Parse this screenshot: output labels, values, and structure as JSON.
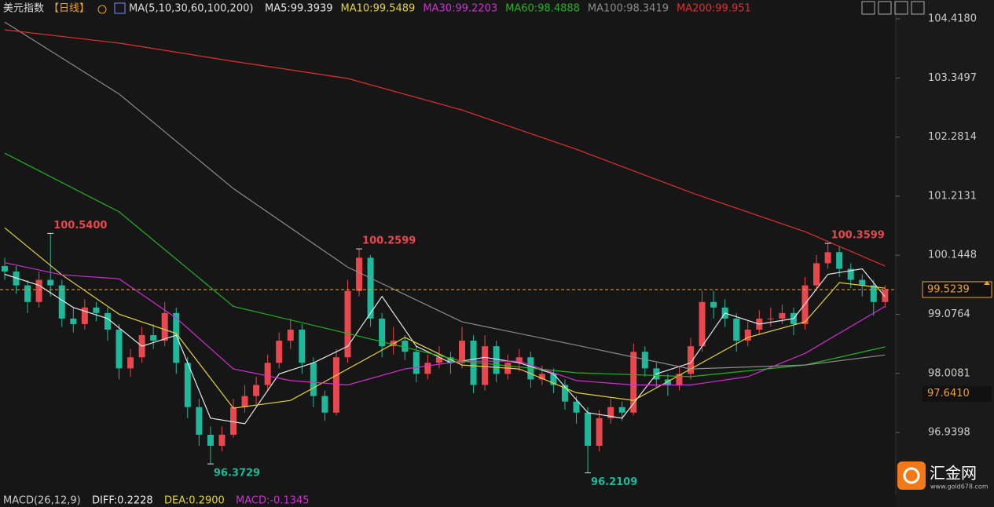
{
  "chart_data": {
    "type": "candlestick",
    "title": "美元指数",
    "period": "【日线】",
    "ma_params": "MA(5,10,30,60,100,200)",
    "up_color": "#e8474d",
    "down_color": "#1fb89a",
    "ylim": [
      95.892,
      104.7585
    ],
    "yticks": [
      {
        "value": 104.418,
        "label": "104.4180"
      },
      {
        "value": 103.3497,
        "label": "103.3497"
      },
      {
        "value": 102.2814,
        "label": "102.2814"
      },
      {
        "value": 101.2131,
        "label": "101.2131"
      },
      {
        "value": 100.1448,
        "label": "100.1448"
      },
      {
        "value": 99.0764,
        "label": "99.0764"
      },
      {
        "value": 98.0081,
        "label": "98.0081"
      },
      {
        "value": 96.9398,
        "label": "96.9398"
      }
    ],
    "ohlc": [
      [
        99.95,
        100.1,
        99.7,
        99.85
      ],
      [
        99.85,
        99.95,
        99.45,
        99.6
      ],
      [
        99.6,
        99.7,
        99.1,
        99.3
      ],
      [
        99.3,
        99.85,
        99.2,
        99.7
      ],
      [
        99.7,
        100.54,
        99.4,
        99.6
      ],
      [
        99.6,
        99.7,
        98.85,
        99.0
      ],
      [
        99.0,
        99.2,
        98.75,
        98.9
      ],
      [
        98.9,
        99.35,
        98.8,
        99.2
      ],
      [
        99.2,
        99.3,
        98.95,
        99.1
      ],
      [
        99.1,
        99.2,
        98.6,
        98.8
      ],
      [
        98.8,
        98.9,
        97.9,
        98.1
      ],
      [
        98.1,
        98.45,
        97.95,
        98.3
      ],
      [
        98.3,
        98.85,
        98.2,
        98.7
      ],
      [
        98.7,
        98.9,
        98.45,
        98.6
      ],
      [
        98.6,
        99.3,
        98.5,
        99.1
      ],
      [
        99.1,
        99.2,
        98.0,
        98.2
      ],
      [
        98.2,
        98.3,
        97.2,
        97.4
      ],
      [
        97.4,
        97.55,
        96.7,
        96.9
      ],
      [
        96.9,
        97.05,
        96.3729,
        96.7
      ],
      [
        96.7,
        97.05,
        96.6,
        96.9
      ],
      [
        96.9,
        97.55,
        96.85,
        97.4
      ],
      [
        97.4,
        97.8,
        97.3,
        97.6
      ],
      [
        97.6,
        97.95,
        97.45,
        97.8
      ],
      [
        97.8,
        98.35,
        97.7,
        98.2
      ],
      [
        98.2,
        98.75,
        98.1,
        98.6
      ],
      [
        98.6,
        99.0,
        98.45,
        98.8
      ],
      [
        98.8,
        98.9,
        98.0,
        98.2
      ],
      [
        98.2,
        98.3,
        97.4,
        97.6
      ],
      [
        97.6,
        97.7,
        97.15,
        97.3
      ],
      [
        97.3,
        98.45,
        97.25,
        98.3
      ],
      [
        98.3,
        99.7,
        98.2,
        99.5
      ],
      [
        99.5,
        100.2599,
        99.4,
        100.1
      ],
      [
        100.1,
        100.15,
        98.85,
        99.0
      ],
      [
        99.0,
        99.1,
        98.3,
        98.5
      ],
      [
        98.5,
        98.85,
        98.35,
        98.6
      ],
      [
        98.6,
        98.7,
        98.25,
        98.4
      ],
      [
        98.4,
        98.5,
        97.85,
        98.0
      ],
      [
        98.0,
        98.35,
        97.9,
        98.2
      ],
      [
        98.2,
        98.5,
        98.1,
        98.3
      ],
      [
        98.3,
        98.4,
        98.0,
        98.2
      ],
      [
        98.2,
        98.85,
        98.1,
        98.6
      ],
      [
        98.6,
        98.7,
        97.65,
        97.8
      ],
      [
        97.8,
        98.7,
        97.7,
        98.5
      ],
      [
        98.5,
        98.6,
        97.85,
        98.0
      ],
      [
        98.0,
        98.35,
        97.9,
        98.2
      ],
      [
        98.2,
        98.45,
        98.05,
        98.3
      ],
      [
        98.3,
        98.4,
        97.75,
        97.9
      ],
      [
        97.9,
        98.15,
        97.8,
        98.0
      ],
      [
        98.0,
        98.1,
        97.65,
        97.8
      ],
      [
        97.8,
        97.9,
        97.35,
        97.5
      ],
      [
        97.5,
        97.6,
        97.1,
        97.3
      ],
      [
        97.3,
        97.4,
        96.2109,
        96.7
      ],
      [
        96.7,
        97.35,
        96.6,
        97.2
      ],
      [
        97.2,
        97.55,
        97.1,
        97.4
      ],
      [
        97.4,
        97.5,
        97.15,
        97.3
      ],
      [
        97.3,
        98.55,
        97.25,
        98.4
      ],
      [
        98.4,
        98.5,
        97.95,
        98.1
      ],
      [
        98.1,
        98.2,
        97.75,
        97.9
      ],
      [
        97.9,
        98.0,
        97.6,
        97.8
      ],
      [
        97.8,
        98.15,
        97.7,
        98.0
      ],
      [
        98.0,
        98.65,
        97.9,
        98.5
      ],
      [
        98.5,
        99.5,
        98.4,
        99.3
      ],
      [
        99.3,
        99.5,
        99.0,
        99.2
      ],
      [
        99.2,
        99.35,
        98.85,
        99.0
      ],
      [
        99.0,
        99.1,
        98.4,
        98.6
      ],
      [
        98.6,
        98.95,
        98.5,
        98.8
      ],
      [
        98.8,
        99.15,
        98.7,
        99.0
      ],
      [
        99.0,
        99.2,
        98.85,
        99.0
      ],
      [
        99.0,
        99.25,
        98.9,
        99.1
      ],
      [
        99.1,
        99.2,
        98.7,
        98.9
      ],
      [
        98.9,
        99.75,
        98.8,
        99.6
      ],
      [
        99.6,
        100.15,
        99.5,
        100.0
      ],
      [
        100.0,
        100.3599,
        99.9,
        100.2
      ],
      [
        100.2,
        100.3,
        99.75,
        99.9
      ],
      [
        99.9,
        100.0,
        99.55,
        99.7
      ],
      [
        99.7,
        99.8,
        99.4,
        99.6
      ],
      [
        99.6,
        99.7,
        99.05,
        99.3
      ],
      [
        99.3,
        99.6,
        99.2,
        99.5239
      ]
    ],
    "series": [
      {
        "name": "MA5:99.3939",
        "color": "#e6e6e6",
        "x": [
          0,
          3,
          6,
          9,
          12,
          15,
          18,
          21,
          24,
          27,
          30,
          33,
          36,
          39,
          42,
          45,
          48,
          51,
          54,
          57,
          60,
          63,
          66,
          69,
          72,
          75,
          77
        ],
        "values": [
          99.8,
          99.6,
          99.2,
          99.0,
          98.5,
          98.7,
          97.2,
          97.1,
          98.0,
          98.2,
          98.5,
          99.4,
          98.5,
          98.2,
          98.3,
          98.2,
          98.0,
          97.3,
          97.2,
          98.0,
          98.2,
          99.1,
          98.9,
          99.0,
          99.8,
          99.9,
          99.3939
        ]
      },
      {
        "name": "MA10:99.5489",
        "color": "#e5d33a",
        "x": [
          0,
          5,
          10,
          15,
          20,
          25,
          30,
          35,
          40,
          45,
          50,
          55,
          60,
          65,
          70,
          73,
          77
        ],
        "values": [
          100.64,
          99.79,
          99.08,
          98.73,
          97.38,
          97.52,
          98.09,
          98.66,
          98.16,
          98.09,
          97.66,
          97.52,
          98.09,
          98.66,
          98.94,
          99.65,
          99.5489
        ]
      },
      {
        "name": "MA30:99.2203",
        "color": "#d22ed2",
        "x": [
          0,
          5,
          10,
          15,
          20,
          25,
          30,
          35,
          40,
          45,
          50,
          55,
          60,
          65,
          70,
          77
        ],
        "values": [
          100.01,
          99.79,
          99.72,
          99.01,
          98.09,
          97.88,
          97.8,
          98.09,
          98.23,
          98.23,
          97.88,
          97.8,
          97.8,
          97.95,
          98.37,
          99.2203
        ]
      },
      {
        "name": "MA60:98.4888",
        "color": "#22b322",
        "x": [
          0,
          10,
          20,
          30,
          40,
          50,
          60,
          70,
          77
        ],
        "values": [
          101.99,
          100.93,
          99.22,
          98.73,
          98.23,
          98.02,
          97.95,
          98.16,
          98.4888
        ]
      },
      {
        "name": "MA100:98.3419",
        "color": "#8c8c8c",
        "x": [
          0,
          10,
          20,
          30,
          40,
          50,
          60,
          70,
          77
        ],
        "values": [
          104.36,
          103.06,
          101.35,
          99.93,
          98.94,
          98.52,
          98.09,
          98.16,
          98.3419
        ]
      },
      {
        "name": "MA200:99.951",
        "color": "#e0302e",
        "x": [
          0,
          10,
          20,
          30,
          40,
          50,
          60,
          70,
          77
        ],
        "values": [
          104.22,
          103.98,
          103.65,
          103.34,
          102.77,
          102.06,
          101.28,
          100.57,
          99.951
        ]
      }
    ],
    "annotations": [
      {
        "index": 4,
        "value": 100.54,
        "label": "100.5400",
        "color": "#e8474d"
      },
      {
        "index": 31,
        "value": 100.2599,
        "label": "100.2599",
        "color": "#e8474d"
      },
      {
        "index": 72,
        "value": 100.3599,
        "label": "100.3599",
        "color": "#e8474d"
      },
      {
        "index": 18,
        "value": 96.3729,
        "label": "96.3729",
        "color": "#1fb89a"
      },
      {
        "index": 51,
        "value": 96.2109,
        "label": "96.2109",
        "color": "#1fb89a"
      }
    ],
    "price_tags": [
      {
        "value": 99.5239,
        "label": "99.5239",
        "color": "#f0a030",
        "line": true
      },
      {
        "value": 97.641,
        "label": "97.6410",
        "color": "#f0a030",
        "line": false
      }
    ],
    "macd": {
      "title": "MACD(26,12,9)",
      "diff": "DIFF:0.2228",
      "dea": "DEA:0.2900",
      "macd": "MACD:-0.1345"
    },
    "brand": {
      "name": "汇金网",
      "url": "www.gold678.com"
    }
  }
}
